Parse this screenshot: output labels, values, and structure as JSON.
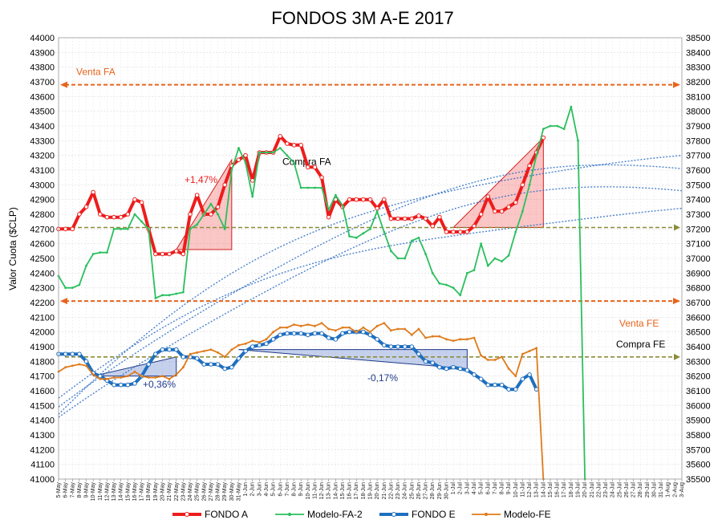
{
  "chart_data": {
    "type": "line",
    "title": "FONDOS 3M A-E 2017",
    "ylabel": "Valor Cuota ($CLP)",
    "y_left": {
      "min": 41000,
      "max": 44000,
      "step": 100
    },
    "y_right": {
      "min": 35500,
      "max": 38500,
      "step": 100
    },
    "x_labels": [
      "5-May",
      "6-May",
      "7-May",
      "8-May",
      "9-May",
      "10-May",
      "11-May",
      "12-May",
      "13-May",
      "14-May",
      "15-May",
      "16-May",
      "17-May",
      "18-May",
      "19-May",
      "20-May",
      "21-May",
      "22-May",
      "23-May",
      "24-May",
      "25-May",
      "26-May",
      "27-May",
      "28-May",
      "29-May",
      "30-May",
      "31-May",
      "1-Jun",
      "2-Jun",
      "3-Jun",
      "4-Jun",
      "5-Jun",
      "6-Jun",
      "7-Jun",
      "8-Jun",
      "9-Jun",
      "10-Jun",
      "11-Jun",
      "12-Jun",
      "13-Jun",
      "14-Jun",
      "15-Jun",
      "16-Jun",
      "17-Jun",
      "18-Jun",
      "19-Jun",
      "20-Jun",
      "21-Jun",
      "22-Jun",
      "23-Jun",
      "24-Jun",
      "25-Jun",
      "26-Jun",
      "27-Jun",
      "28-Jun",
      "29-Jun",
      "30-Jun",
      "1-Jul",
      "2-Jul",
      "3-Jul",
      "4-Jul",
      "5-Jul",
      "6-Jul",
      "7-Jul",
      "8-Jul",
      "9-Jul",
      "10-Jul",
      "11-Jul",
      "12-Jul",
      "13-Jul",
      "14-Jul",
      "15-Jul",
      "16-Jul",
      "17-Jul",
      "18-Jul",
      "19-Jul",
      "20-Jul",
      "21-Jul",
      "22-Jul",
      "23-Jul",
      "24-Jul",
      "25-Jul",
      "26-Jul",
      "27-Jul",
      "28-Jul",
      "29-Jul",
      "30-Jul",
      "31-Jul",
      "1-Aug",
      "2-Aug",
      "3-Aug"
    ],
    "series": [
      {
        "name": "FONDO A",
        "axis": "left",
        "color": "#ee1c1c",
        "values": [
          42700,
          42700,
          42700,
          42800,
          42850,
          42950,
          42800,
          42780,
          42780,
          42780,
          42800,
          42900,
          42880,
          42700,
          42530,
          42530,
          42530,
          42550,
          42530,
          42800,
          42930,
          42800,
          42800,
          42850,
          43000,
          43130,
          43170,
          43200,
          43030,
          43220,
          43220,
          43220,
          43330,
          43280,
          43270,
          43270,
          43120,
          43120,
          43050,
          42780,
          42900,
          42850,
          42900,
          42900,
          42900,
          42900,
          42840,
          42900,
          42770,
          42770,
          42770,
          42770,
          42790,
          42770,
          42720,
          42780,
          42680,
          42680,
          42680,
          42680,
          42720,
          42800,
          42920,
          42820,
          42820,
          42850,
          42880,
          43000,
          43130,
          43220,
          43320
        ]
      },
      {
        "name": "Modelo-FA-2",
        "axis": "left",
        "color": "#2bbf5e",
        "values": [
          42380,
          42300,
          42300,
          42320,
          42450,
          42530,
          42540,
          42540,
          42700,
          42700,
          42700,
          42800,
          42750,
          42700,
          42230,
          42250,
          42250,
          42260,
          42270,
          42700,
          42730,
          42800,
          42870,
          42800,
          42700,
          43100,
          43250,
          43150,
          42920,
          43220,
          43220,
          43220,
          43250,
          43200,
          43150,
          42980,
          42980,
          42980,
          42980,
          42830,
          42930,
          42860,
          42650,
          42640,
          42670,
          42700,
          42820,
          42680,
          42550,
          42500,
          42500,
          42620,
          42640,
          42530,
          42400,
          42330,
          42320,
          42300,
          42250,
          42400,
          42420,
          42600,
          42450,
          42500,
          42480,
          42520,
          42680,
          42820,
          43000,
          43200,
          43380,
          43400,
          43400,
          43380,
          43530,
          43300,
          41000
        ]
      },
      {
        "name": "FONDO E",
        "axis": "right",
        "color": "#1f6fbf",
        "values": [
          36350,
          36350,
          36350,
          36350,
          36300,
          36220,
          36200,
          36170,
          36140,
          36140,
          36140,
          36150,
          36200,
          36280,
          36350,
          36380,
          36380,
          36380,
          36330,
          36330,
          36320,
          36280,
          36280,
          36280,
          36250,
          36260,
          36320,
          36370,
          36400,
          36410,
          36420,
          36450,
          36480,
          36490,
          36490,
          36490,
          36480,
          36490,
          36490,
          36460,
          36450,
          36490,
          36500,
          36500,
          36500,
          36480,
          36450,
          36410,
          36400,
          36400,
          36400,
          36400,
          36350,
          36300,
          36290,
          36260,
          36250,
          36260,
          36250,
          36240,
          36210,
          36180,
          36140,
          36140,
          36140,
          36110,
          36110,
          36180,
          36210,
          36110
        ]
      },
      {
        "name": "Modelo-FE",
        "axis": "right",
        "color": "#e07b1c",
        "values": [
          36230,
          36260,
          36270,
          36280,
          36270,
          36210,
          36180,
          36180,
          36190,
          36190,
          36200,
          36230,
          36200,
          36190,
          36190,
          36200,
          36180,
          36210,
          36260,
          36350,
          36360,
          36370,
          36380,
          36360,
          36330,
          36380,
          36410,
          36420,
          36440,
          36430,
          36450,
          36500,
          36530,
          36530,
          36550,
          36540,
          36550,
          36540,
          36560,
          36520,
          36510,
          36530,
          36530,
          36500,
          36530,
          36500,
          36540,
          36560,
          36510,
          36520,
          36520,
          36480,
          36520,
          36460,
          36470,
          36470,
          36450,
          36440,
          36450,
          36450,
          36460,
          36340,
          36310,
          36310,
          36330,
          36250,
          36200,
          36350,
          36370,
          36390,
          35500
        ]
      }
    ],
    "trend_lines": [
      {
        "color": "#2b6cc4",
        "start": 41440,
        "end": 43200
      },
      {
        "color": "#2b6cc4",
        "start": 41490,
        "end": 43110
      },
      {
        "color": "#2b6cc4",
        "start": 41550,
        "end": 42840
      },
      {
        "color": "#2b6cc4",
        "start": 41420,
        "end": 42960
      }
    ],
    "reference_lines": [
      {
        "label": "Venta FA",
        "axis": "left",
        "value": 43680,
        "color": "#e8641c"
      },
      {
        "label": "Compra FA",
        "axis": "left",
        "value": 42710,
        "color": "#8c8c3a"
      },
      {
        "label": "Venta FE",
        "axis": "left",
        "value": 42210,
        "color": "#e8641c"
      },
      {
        "label": "Compra FE",
        "axis": "right",
        "value": 36330,
        "color": "#8c8c3a"
      }
    ],
    "annotations": [
      {
        "text": "+1,47%",
        "color": "#ee1c1c"
      },
      {
        "text": "+0,36%",
        "color": "#1f3a8a"
      },
      {
        "text": "-0,17%",
        "color": "#1f3a8a"
      }
    ],
    "legend_position": "bottom"
  }
}
